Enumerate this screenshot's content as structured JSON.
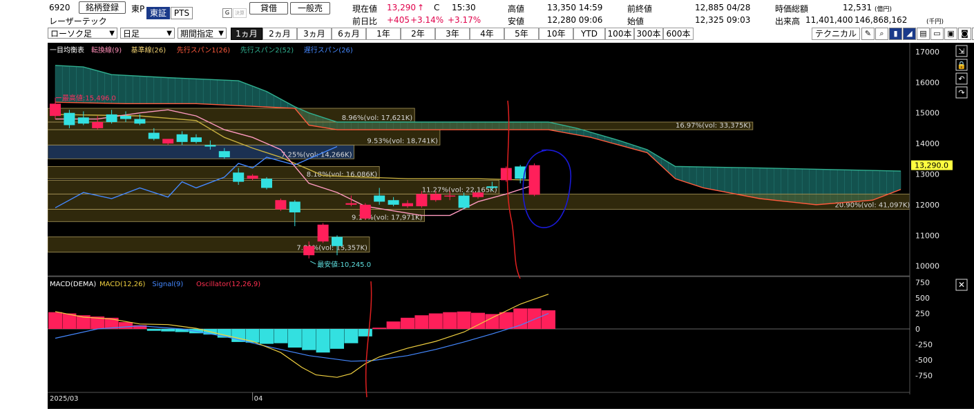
{
  "header": {
    "code": "6920",
    "register_label": "銘柄登録",
    "market_label": "東P",
    "name": "レーザーテック",
    "market_toggle": [
      "東証",
      "PTS"
    ],
    "g_label": "G",
    "kessan_label": "決算",
    "loan_label": "貸借",
    "general_short_label": "一般売",
    "current_price_label": "現在値",
    "current_price": "13,290",
    "current_arrow": "↑",
    "current_flag": "C",
    "current_time": "15:30",
    "prev_diff_label": "前日比",
    "prev_diff": "+405",
    "prev_diff_pct": "+3.14%",
    "prev_diff_pct2": "+3.17%",
    "high_label": "高値",
    "high_value": "13,350 14:59",
    "low_label": "安値",
    "low_value": "12,280 09:06",
    "prev_close_label": "前終値",
    "prev_close_value": "12,885 04/28",
    "open_label": "始値",
    "open_value": "12,325 09:03",
    "market_cap_label": "時価総額",
    "market_cap_value": "12,531",
    "market_cap_unit": "(億円)",
    "volume_label": "出来高",
    "volume_value": "11,401,400",
    "turnover_value": "146,868,162",
    "turnover_unit": "(千円)"
  },
  "toolbar": {
    "chart_type": "ローソク足",
    "interval": "日足",
    "period_mode": "期間指定",
    "periods": [
      "1ヵ月",
      "2ヵ月",
      "3ヵ月",
      "6ヵ月",
      "1年",
      "2年",
      "3年",
      "4年",
      "5年",
      "10年",
      "YTD",
      "100本",
      "300本",
      "600本"
    ],
    "active_period": "1ヵ月",
    "technical_label": "テクニカル",
    "icons": [
      "pencil-icon",
      "zoom-icon",
      "bars-icon",
      "area-icon",
      "print-icon",
      "folder-icon",
      "save-icon",
      "capture-icon",
      "settings-icon"
    ]
  },
  "ichimoku_legend": {
    "title": "一目均衡表",
    "items": [
      {
        "label": "転換線(9)",
        "color": "#ff8fb8"
      },
      {
        "label": "基準線(26)",
        "color": "#f0d070"
      },
      {
        "label": "先行スパン1(26)",
        "color": "#ff5a3c"
      },
      {
        "label": "先行スパン2(52)",
        "color": "#30b090"
      },
      {
        "label": "遅行スパン(26)",
        "color": "#4488ff"
      }
    ]
  },
  "macd_legend": {
    "title": "MACD(DEMA)",
    "items": [
      {
        "label": "MACD(12,26)",
        "color": "#f0d040"
      },
      {
        "label": "Signal(9)",
        "color": "#4488ff"
      },
      {
        "label": "Oscillator(12,26,9)",
        "color": "#ff3050"
      }
    ]
  },
  "date_labels": [
    "2025/03",
    "04"
  ],
  "side_icons": [
    "collapse-icon",
    "lock-icon",
    "undo-icon",
    "redo-icon"
  ],
  "colors": {
    "up": "#ff1f5a",
    "down": "#33e0e0",
    "cloud": "#1a6e68",
    "volume_band": "#6a5a1a"
  },
  "chart_data": [
    {
      "type": "candlestick",
      "title": "一目均衡表",
      "y_ticks": [
        "17000",
        "16000",
        "15000",
        "14000",
        "13000",
        "12000",
        "11000",
        "10000"
      ],
      "ylim": [
        9700,
        17200
      ],
      "current_price_tag": "13,290.0",
      "candles": [
        {
          "o": 14900,
          "h": 15496,
          "c": 15300,
          "l": 14800
        },
        {
          "o": 15000,
          "h": 15100,
          "c": 14600,
          "l": 14500
        },
        {
          "o": 14850,
          "h": 15050,
          "c": 14650,
          "l": 14600
        },
        {
          "o": 14500,
          "h": 14900,
          "c": 14700,
          "l": 14450
        },
        {
          "o": 14950,
          "h": 15100,
          "c": 14700,
          "l": 14650
        },
        {
          "o": 14900,
          "h": 15050,
          "c": 14800,
          "l": 14700
        },
        {
          "o": 14800,
          "h": 14950,
          "c": 14650,
          "l": 14600
        },
        {
          "o": 14350,
          "h": 14500,
          "c": 14150,
          "l": 14100
        },
        {
          "o": 14000,
          "h": 14150,
          "c": 14150,
          "l": 13950
        },
        {
          "o": 14300,
          "h": 14400,
          "c": 14050,
          "l": 13950
        },
        {
          "o": 14200,
          "h": 14300,
          "c": 14050,
          "l": 14000
        },
        {
          "o": 13950,
          "h": 14100,
          "c": 13900,
          "l": 13800
        },
        {
          "o": 13750,
          "h": 13850,
          "c": 13550,
          "l": 13500
        },
        {
          "o": 13050,
          "h": 13200,
          "c": 12750,
          "l": 12650
        },
        {
          "o": 12850,
          "h": 13000,
          "c": 12950,
          "l": 12800
        },
        {
          "o": 12850,
          "h": 12900,
          "c": 12550,
          "l": 12500
        },
        {
          "o": 11850,
          "h": 12200,
          "c": 12150,
          "l": 11800
        },
        {
          "o": 12100,
          "h": 12150,
          "c": 11750,
          "l": 11300
        },
        {
          "o": 10350,
          "h": 10800,
          "c": 10650,
          "l": 10245
        },
        {
          "o": 10800,
          "h": 11400,
          "c": 11350,
          "l": 10750
        },
        {
          "o": 10950,
          "h": 11000,
          "c": 10650,
          "l": 10350
        },
        {
          "o": 12000,
          "h": 12300,
          "c": 12050,
          "l": 11950
        },
        {
          "o": 11550,
          "h": 12050,
          "c": 12000,
          "l": 11500
        },
        {
          "o": 12300,
          "h": 12550,
          "c": 12100,
          "l": 12000
        },
        {
          "o": 12150,
          "h": 12250,
          "c": 12000,
          "l": 11950
        },
        {
          "o": 11950,
          "h": 12150,
          "c": 12050,
          "l": 11900
        },
        {
          "o": 11950,
          "h": 12450,
          "c": 12350,
          "l": 11900
        },
        {
          "o": 12150,
          "h": 12450,
          "c": 12350,
          "l": 12100
        },
        {
          "o": 12300,
          "h": 12450,
          "c": 12300,
          "l": 12150
        },
        {
          "o": 12300,
          "h": 12400,
          "c": 11900,
          "l": 11850
        },
        {
          "o": 12250,
          "h": 12400,
          "c": 12400,
          "l": 12200
        },
        {
          "o": 12600,
          "h": 12750,
          "c": 12550,
          "l": 12450
        },
        {
          "o": 12800,
          "h": 13250,
          "c": 13200,
          "l": 12750
        },
        {
          "o": 13250,
          "h": 13300,
          "c": 12850,
          "l": 12700
        },
        {
          "o": 12325,
          "h": 13350,
          "c": 13290,
          "l": 12280
        }
      ],
      "tenkan": [
        {
          "i": 0,
          "v": 14800
        },
        {
          "i": 3,
          "v": 14800
        },
        {
          "i": 6,
          "v": 15000
        },
        {
          "i": 8,
          "v": 15100
        },
        {
          "i": 10,
          "v": 14900
        },
        {
          "i": 12,
          "v": 14450
        },
        {
          "i": 14,
          "v": 14200
        },
        {
          "i": 16,
          "v": 13800
        },
        {
          "i": 18,
          "v": 12700
        },
        {
          "i": 20,
          "v": 12400
        },
        {
          "i": 22,
          "v": 11950
        },
        {
          "i": 26,
          "v": 11650
        },
        {
          "i": 28,
          "v": 11650
        },
        {
          "i": 30,
          "v": 12100
        },
        {
          "i": 32,
          "v": 12350
        },
        {
          "i": 34,
          "v": 12650
        }
      ],
      "kijun": [
        {
          "i": 0,
          "v": 14950
        },
        {
          "i": 6,
          "v": 14900
        },
        {
          "i": 10,
          "v": 14750
        },
        {
          "i": 12,
          "v": 14200
        },
        {
          "i": 14,
          "v": 13850
        },
        {
          "i": 16,
          "v": 13550
        },
        {
          "i": 19,
          "v": 12950
        },
        {
          "i": 25,
          "v": 12850
        },
        {
          "i": 30,
          "v": 12850
        },
        {
          "i": 34,
          "v": 12800
        }
      ],
      "chikou": [
        {
          "i": 0,
          "v": 11900
        },
        {
          "i": 2,
          "v": 12400
        },
        {
          "i": 4,
          "v": 12200
        },
        {
          "i": 6,
          "v": 12550
        },
        {
          "i": 8,
          "v": 12250
        },
        {
          "i": 9,
          "v": 12750
        },
        {
          "i": 10,
          "v": 12550
        },
        {
          "i": 12,
          "v": 12900
        },
        {
          "i": 13,
          "v": 13350
        },
        {
          "i": 14,
          "v": 13200
        },
        {
          "i": 15,
          "v": 13550
        },
        {
          "i": 17,
          "v": 13300
        },
        {
          "i": 19,
          "v": 13700
        },
        {
          "i": 20,
          "v": 13900
        }
      ],
      "span_a": [
        {
          "i": 0,
          "v": 15350
        },
        {
          "i": 5,
          "v": 15300
        },
        {
          "i": 10,
          "v": 15300
        },
        {
          "i": 17,
          "v": 15150
        },
        {
          "i": 18,
          "v": 14600
        },
        {
          "i": 20,
          "v": 14450
        },
        {
          "i": 26,
          "v": 14450
        },
        {
          "i": 35,
          "v": 14450
        },
        {
          "i": 38,
          "v": 14200
        },
        {
          "i": 42,
          "v": 13700
        },
        {
          "i": 44,
          "v": 12850
        },
        {
          "i": 46,
          "v": 12550
        },
        {
          "i": 50,
          "v": 12200
        },
        {
          "i": 54,
          "v": 12000
        },
        {
          "i": 58,
          "v": 12150
        },
        {
          "i": 60,
          "v": 12500
        }
      ],
      "span_b": [
        {
          "i": 0,
          "v": 16550
        },
        {
          "i": 2,
          "v": 16500
        },
        {
          "i": 4,
          "v": 16250
        },
        {
          "i": 8,
          "v": 16150
        },
        {
          "i": 13,
          "v": 16050
        },
        {
          "i": 15,
          "v": 15700
        },
        {
          "i": 17,
          "v": 15200
        },
        {
          "i": 18,
          "v": 15000
        },
        {
          "i": 20,
          "v": 14700
        },
        {
          "i": 26,
          "v": 14700
        },
        {
          "i": 35,
          "v": 14700
        },
        {
          "i": 37,
          "v": 14500
        },
        {
          "i": 40,
          "v": 14100
        },
        {
          "i": 42,
          "v": 13800
        },
        {
          "i": 44,
          "v": 13250
        },
        {
          "i": 50,
          "v": 13200
        },
        {
          "i": 60,
          "v": 13100
        }
      ],
      "volume_bands": [
        {
          "lo": 14700,
          "hi": 15150,
          "i0": 0,
          "i1": 25.5,
          "label": "8.96%(vol: 17,621K)"
        },
        {
          "lo": 14450,
          "hi": 14700,
          "i0": 0,
          "i1": 49.5,
          "label": "16.97%(vol: 33,375K)"
        },
        {
          "lo": 13950,
          "hi": 14450,
          "i0": 0,
          "i1": 27.3,
          "label": "9.53%(vol: 18,741K)"
        },
        {
          "lo": 13500,
          "hi": 13950,
          "i0": 0,
          "i1": 21.2,
          "label": "7.25%(vol: 14,266K)",
          "hl": true
        },
        {
          "lo": 12850,
          "hi": 13250,
          "i0": 0,
          "i1": 23.0,
          "label": "8.18%(vol: 16,086K)"
        },
        {
          "lo": 12350,
          "hi": 12800,
          "i0": 0,
          "i1": 31.5,
          "label": "11.27%(vol: 22,165K)"
        },
        {
          "lo": 11850,
          "hi": 12350,
          "i0": 0,
          "i1": 60.8,
          "label": "20.90%(vol: 41,097K)"
        },
        {
          "lo": 11450,
          "hi": 11850,
          "i0": 0,
          "i1": 26.2,
          "label": "9.14%(vol: 17,971K)"
        },
        {
          "lo": 10450,
          "hi": 10950,
          "i0": 0,
          "i1": 22.3,
          "label": "7.81%(vol: 15,357K)"
        }
      ],
      "annotations": {
        "high": {
          "i": 0,
          "v": 15496,
          "label": "最高値:15,496.0"
        },
        "low": {
          "i": 18,
          "v": 10245,
          "label": "最安値:10,245.0"
        }
      }
    },
    {
      "type": "bar",
      "title": "MACD(DEMA)",
      "y_ticks": [
        "750",
        "500",
        "250",
        "0",
        "-250",
        "-500",
        "-750"
      ],
      "ylim": [
        -1000,
        800
      ],
      "oscillator": [
        270,
        250,
        220,
        200,
        180,
        110,
        60,
        -30,
        -40,
        -50,
        -70,
        -90,
        -140,
        -210,
        -220,
        -240,
        -230,
        -300,
        -340,
        -380,
        -320,
        -230,
        -120,
        20,
        120,
        180,
        220,
        250,
        270,
        280,
        260,
        240,
        270,
        330,
        330,
        300
      ],
      "macd": [
        {
          "i": 0,
          "v": 280
        },
        {
          "i": 2,
          "v": 190
        },
        {
          "i": 4,
          "v": 160
        },
        {
          "i": 6,
          "v": 80
        },
        {
          "i": 8,
          "v": 70
        },
        {
          "i": 10,
          "v": 10
        },
        {
          "i": 12,
          "v": -100
        },
        {
          "i": 14,
          "v": -200
        },
        {
          "i": 16,
          "v": -380
        },
        {
          "i": 17.5,
          "v": -620
        },
        {
          "i": 18.5,
          "v": -740
        },
        {
          "i": 20,
          "v": -780
        },
        {
          "i": 21,
          "v": -720
        },
        {
          "i": 22,
          "v": -560
        },
        {
          "i": 23,
          "v": -450
        },
        {
          "i": 25,
          "v": -310
        },
        {
          "i": 27,
          "v": -200
        },
        {
          "i": 29,
          "v": -50
        },
        {
          "i": 31,
          "v": 180
        },
        {
          "i": 33,
          "v": 400
        },
        {
          "i": 35,
          "v": 560
        }
      ],
      "signal": [
        {
          "i": 0,
          "v": -150
        },
        {
          "i": 3,
          "v": 0
        },
        {
          "i": 6,
          "v": 50
        },
        {
          "i": 9,
          "v": 0
        },
        {
          "i": 12,
          "v": -120
        },
        {
          "i": 15,
          "v": -280
        },
        {
          "i": 18,
          "v": -430
        },
        {
          "i": 21,
          "v": -520
        },
        {
          "i": 22.5,
          "v": -510
        },
        {
          "i": 25,
          "v": -430
        },
        {
          "i": 27,
          "v": -330
        },
        {
          "i": 29,
          "v": -210
        },
        {
          "i": 31,
          "v": -80
        },
        {
          "i": 33,
          "v": 60
        },
        {
          "i": 35,
          "v": 250
        }
      ]
    }
  ]
}
